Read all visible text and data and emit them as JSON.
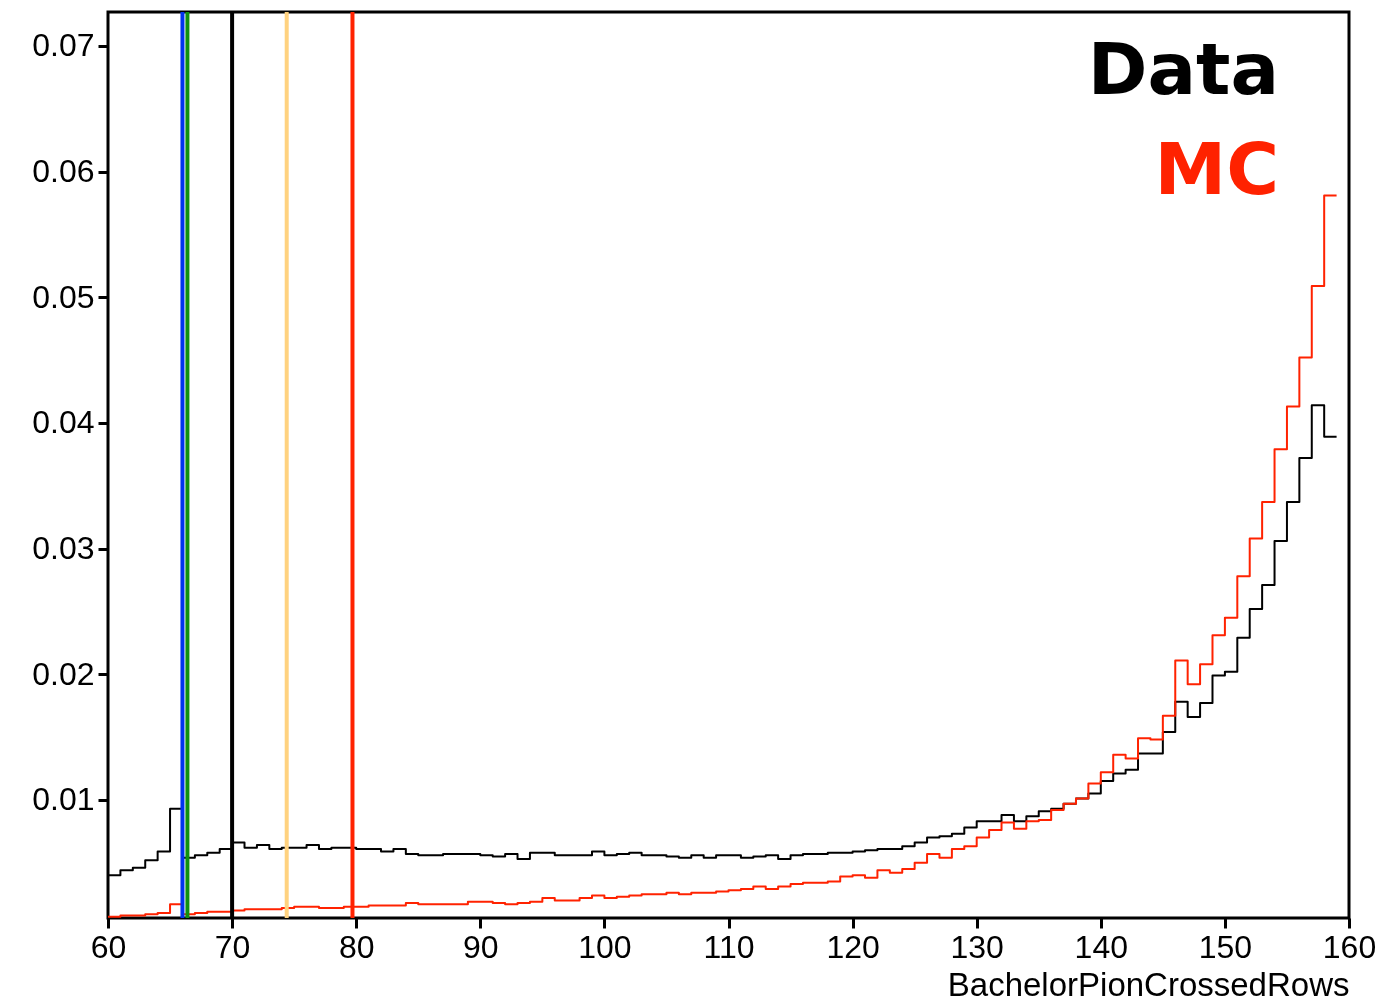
{
  "chart_data": {
    "type": "histogram",
    "xlabel": "BachelorPionCrossedRows",
    "bins": [
      60,
      61,
      62,
      63,
      64,
      65,
      66,
      67,
      68,
      69,
      70,
      71,
      72,
      73,
      74,
      75,
      76,
      77,
      78,
      79,
      80,
      81,
      82,
      83,
      84,
      85,
      86,
      87,
      88,
      89,
      90,
      91,
      92,
      93,
      94,
      95,
      96,
      97,
      98,
      99,
      100,
      101,
      102,
      103,
      104,
      105,
      106,
      107,
      108,
      109,
      110,
      111,
      112,
      113,
      114,
      115,
      116,
      117,
      118,
      119,
      120,
      121,
      122,
      123,
      124,
      125,
      126,
      127,
      128,
      129,
      130,
      131,
      132,
      133,
      134,
      135,
      136,
      137,
      138,
      139,
      140,
      141,
      142,
      143,
      144,
      145,
      146,
      147,
      148,
      149,
      150,
      151,
      152,
      153,
      154,
      155,
      156,
      157,
      158,
      159
    ],
    "series": [
      {
        "name": "Data",
        "color": "#000000",
        "values": [
          0.004,
          0.0044,
          0.0046,
          0.0052,
          0.0059,
          0.0093,
          0.0054,
          0.0056,
          0.0058,
          0.0061,
          0.0066,
          0.0062,
          0.0064,
          0.0061,
          0.0062,
          0.0062,
          0.0064,
          0.0061,
          0.0062,
          0.0062,
          0.0061,
          0.0061,
          0.0059,
          0.0061,
          0.0057,
          0.0056,
          0.0056,
          0.0057,
          0.0057,
          0.0057,
          0.0056,
          0.0055,
          0.0057,
          0.0053,
          0.0058,
          0.0058,
          0.0056,
          0.0056,
          0.0056,
          0.0059,
          0.0056,
          0.0057,
          0.0058,
          0.0056,
          0.0056,
          0.0055,
          0.0054,
          0.0056,
          0.0054,
          0.0056,
          0.0056,
          0.0054,
          0.0055,
          0.0056,
          0.0053,
          0.0056,
          0.0057,
          0.0057,
          0.0058,
          0.0058,
          0.0059,
          0.006,
          0.0061,
          0.0061,
          0.0063,
          0.0066,
          0.007,
          0.0071,
          0.0073,
          0.0078,
          0.0083,
          0.0083,
          0.0088,
          0.0083,
          0.0087,
          0.0091,
          0.0093,
          0.0097,
          0.0101,
          0.0105,
          0.0115,
          0.0121,
          0.0124,
          0.0137,
          0.0137,
          0.0154,
          0.0178,
          0.0166,
          0.0177,
          0.0199,
          0.0202,
          0.0229,
          0.0252,
          0.0271,
          0.0306,
          0.0337,
          0.0372,
          0.0414,
          0.0389
        ]
      },
      {
        "name": "MC",
        "color": "#ff2200",
        "values": [
          0.0007,
          0.0008,
          0.0008,
          0.0009,
          0.001,
          0.0017,
          0.0009,
          0.001,
          0.0011,
          0.0011,
          0.0012,
          0.0013,
          0.0013,
          0.0013,
          0.0014,
          0.0015,
          0.0015,
          0.0014,
          0.0014,
          0.0015,
          0.0015,
          0.0016,
          0.0016,
          0.0016,
          0.0018,
          0.0017,
          0.0017,
          0.0017,
          0.0017,
          0.0019,
          0.0019,
          0.0018,
          0.0017,
          0.0018,
          0.0019,
          0.0022,
          0.002,
          0.002,
          0.0022,
          0.0024,
          0.0022,
          0.0023,
          0.0024,
          0.0025,
          0.0025,
          0.0026,
          0.0025,
          0.0026,
          0.0026,
          0.0027,
          0.0028,
          0.0029,
          0.0031,
          0.0029,
          0.0031,
          0.0033,
          0.0034,
          0.0034,
          0.0035,
          0.0039,
          0.004,
          0.0038,
          0.0044,
          0.0042,
          0.0045,
          0.005,
          0.0057,
          0.0054,
          0.0061,
          0.0063,
          0.007,
          0.0076,
          0.0082,
          0.0077,
          0.0083,
          0.0084,
          0.0092,
          0.0097,
          0.0101,
          0.0113,
          0.0122,
          0.0136,
          0.0133,
          0.0149,
          0.0148,
          0.0167,
          0.0211,
          0.0192,
          0.0208,
          0.0231,
          0.0245,
          0.0278,
          0.0308,
          0.0337,
          0.0379,
          0.0413,
          0.0452,
          0.0509,
          0.0581
        ]
      }
    ],
    "xlim": [
      60,
      160
    ],
    "xticks": [
      60,
      70,
      80,
      90,
      100,
      110,
      120,
      130,
      140,
      150,
      160
    ],
    "ylim": [
      0.0006,
      0.0727
    ],
    "yticks": [
      0.01,
      0.02,
      0.03,
      0.04,
      0.05,
      0.06,
      0.07
    ],
    "ref_lines": [
      {
        "axis": "x",
        "value": 66.0,
        "color": "#0033ee"
      },
      {
        "axis": "x",
        "value": 66.4,
        "color": "#109010"
      },
      {
        "axis": "x",
        "value": 70,
        "color": "#000000"
      },
      {
        "axis": "x",
        "value": 74.4,
        "color": "#ffd27f"
      },
      {
        "axis": "x",
        "value": 79.7,
        "color": "#ff2200"
      }
    ]
  }
}
